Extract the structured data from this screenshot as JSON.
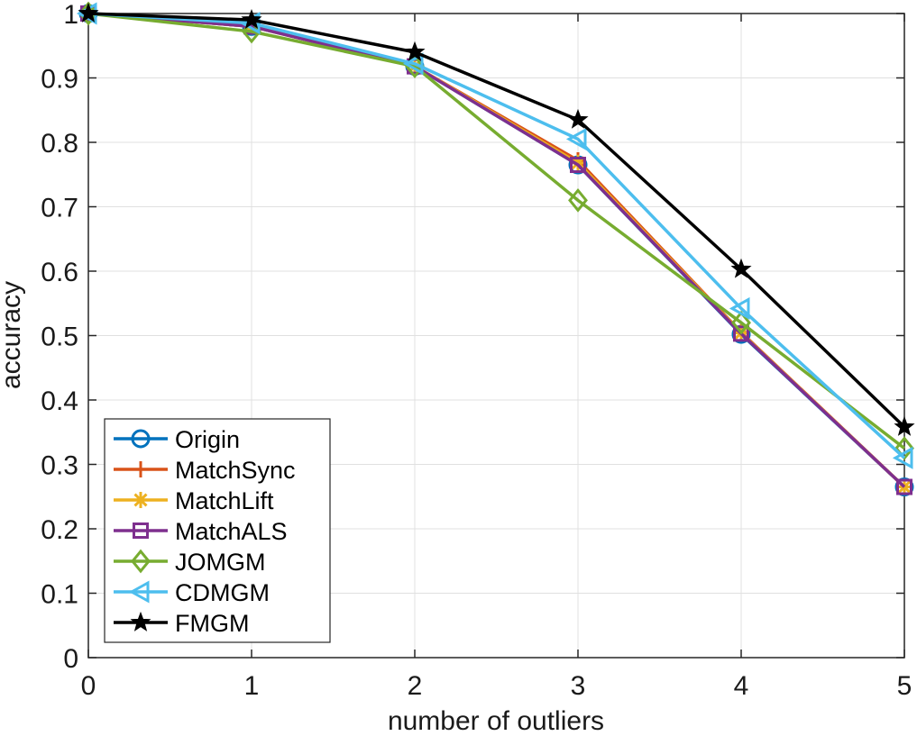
{
  "chart_data": {
    "type": "line",
    "title": "",
    "xlabel": "number of outliers",
    "ylabel": "accuracy",
    "x": [
      0,
      1,
      2,
      3,
      4,
      5
    ],
    "xlim": [
      0,
      5
    ],
    "ylim": [
      0,
      1
    ],
    "xticks": [
      "0",
      "1",
      "2",
      "3",
      "4",
      "5"
    ],
    "yticks": [
      "0",
      "0.1",
      "0.2",
      "0.3",
      "0.4",
      "0.5",
      "0.6",
      "0.7",
      "0.8",
      "0.9",
      "1"
    ],
    "grid": true,
    "legend_position": "bottom-left",
    "series": [
      {
        "name": "Origin",
        "color": "#0072BD",
        "marker": "circle",
        "values": [
          1.0,
          0.98,
          0.918,
          0.765,
          0.502,
          0.265
        ]
      },
      {
        "name": "MatchSync",
        "color": "#D95319",
        "marker": "plus",
        "values": [
          1.0,
          0.98,
          0.918,
          0.772,
          0.505,
          0.265
        ]
      },
      {
        "name": "MatchLift",
        "color": "#EDB120",
        "marker": "asterisk",
        "values": [
          1.0,
          0.98,
          0.918,
          0.768,
          0.504,
          0.265
        ]
      },
      {
        "name": "MatchALS",
        "color": "#7E2F8E",
        "marker": "square",
        "values": [
          1.0,
          0.98,
          0.918,
          0.765,
          0.503,
          0.265
        ]
      },
      {
        "name": "JOMGM",
        "color": "#77AC30",
        "marker": "diamond",
        "values": [
          1.0,
          0.972,
          0.918,
          0.71,
          0.52,
          0.325
        ]
      },
      {
        "name": "CDMGM",
        "color": "#4DBEEE",
        "marker": "triangle-left",
        "values": [
          1.0,
          0.985,
          0.922,
          0.805,
          0.542,
          0.31
        ]
      },
      {
        "name": "FMGM",
        "color": "#000000",
        "marker": "pentagram",
        "values": [
          1.0,
          0.99,
          0.94,
          0.835,
          0.603,
          0.358
        ]
      }
    ]
  }
}
